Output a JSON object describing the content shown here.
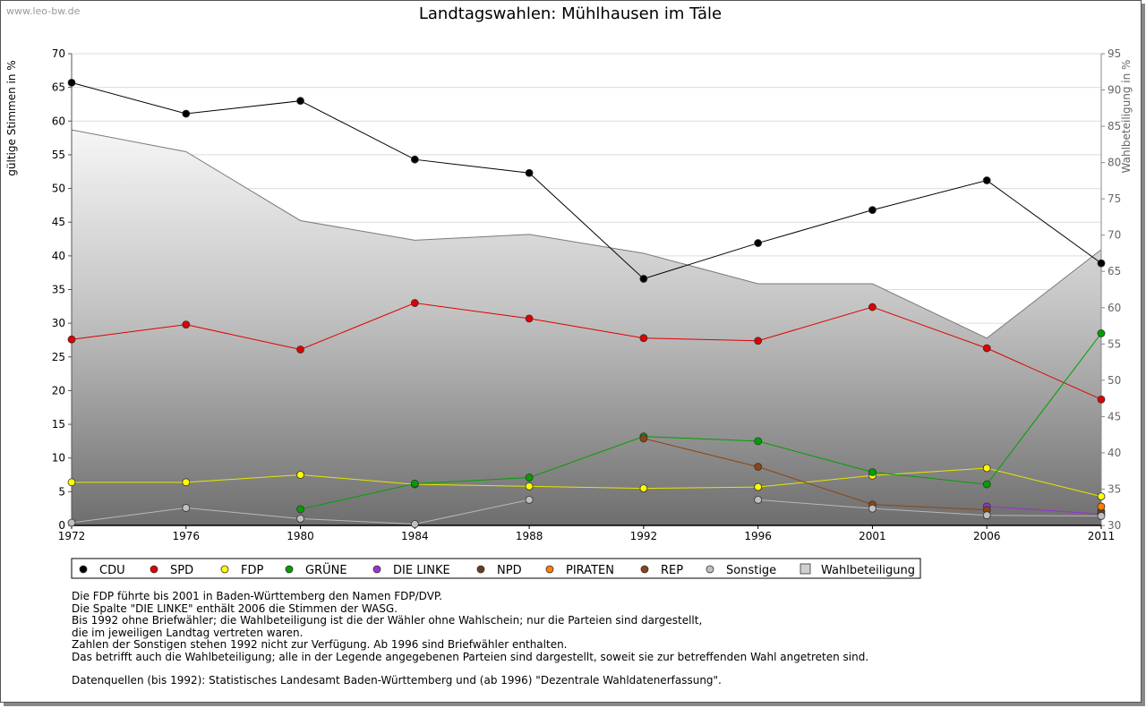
{
  "watermark": "www.leo-bw.de",
  "chart_data": {
    "type": "line",
    "title": "Landtagswahlen: Mühlhausen im Täle",
    "ylabel": "gültige Stimmen in %",
    "y2label": "Wahlbeteiligung in %",
    "x": [
      "1972",
      "1976",
      "1980",
      "1984",
      "1988",
      "1992",
      "1996",
      "2001",
      "2006",
      "2011"
    ],
    "ylim": [
      0,
      70
    ],
    "y_ticks": [
      0,
      5,
      10,
      15,
      20,
      25,
      30,
      35,
      40,
      45,
      50,
      55,
      60,
      65,
      70
    ],
    "y2lim": [
      30,
      95
    ],
    "y2_ticks": [
      30,
      35,
      40,
      45,
      50,
      55,
      60,
      65,
      70,
      75,
      80,
      85,
      90,
      95
    ],
    "grid": true,
    "series": [
      {
        "name": "CDU",
        "color": "#000000",
        "values": [
          65.7,
          61.1,
          63.0,
          54.3,
          52.3,
          36.6,
          41.9,
          46.8,
          51.2,
          38.9
        ]
      },
      {
        "name": "SPD",
        "color": "#e00000",
        "values": [
          27.6,
          29.8,
          26.1,
          33.0,
          30.7,
          27.8,
          27.4,
          32.4,
          26.3,
          18.7
        ]
      },
      {
        "name": "FDP",
        "color": "#ffff00",
        "values": [
          6.4,
          6.4,
          7.5,
          6.1,
          5.8,
          5.5,
          5.7,
          7.4,
          8.5,
          4.3
        ]
      },
      {
        "name": "GRÜNE",
        "color": "#00a000",
        "values": [
          null,
          null,
          2.4,
          6.2,
          7.1,
          13.2,
          12.5,
          7.9,
          6.1,
          28.5
        ]
      },
      {
        "name": "DIE LINKE",
        "color": "#9933cc",
        "values": [
          null,
          null,
          null,
          null,
          null,
          null,
          null,
          null,
          2.8,
          1.7
        ]
      },
      {
        "name": "NPD",
        "color": "#6b3a1f",
        "values": [
          null,
          null,
          null,
          null,
          null,
          null,
          null,
          null,
          null,
          2.1
        ]
      },
      {
        "name": "PIRATEN",
        "color": "#ff7f00",
        "values": [
          null,
          null,
          null,
          null,
          null,
          null,
          null,
          null,
          null,
          2.8
        ]
      },
      {
        "name": "REP",
        "color": "#8b4513",
        "values": [
          null,
          null,
          null,
          null,
          null,
          12.9,
          8.7,
          3.1,
          2.3,
          null
        ]
      },
      {
        "name": "Sonstige",
        "color": "#c0c0c0",
        "values": [
          0.4,
          2.6,
          1.0,
          0.2,
          3.8,
          null,
          3.8,
          2.5,
          1.5,
          1.4
        ]
      }
    ],
    "area_series": {
      "name": "Wahlbeteiligung",
      "axis": "right",
      "values": [
        84.5,
        81.5,
        72.0,
        69.3,
        70.1,
        67.5,
        63.3,
        63.3,
        55.8,
        68.0
      ]
    },
    "legend_position": "bottom"
  },
  "notes": [
    "Die FDP führte bis 2001 in Baden-Württemberg den Namen FDP/DVP.",
    "Die Spalte \"DIE LINKE\" enthält 2006 die Stimmen der WASG.",
    "Bis 1992 ohne Briefwähler; die Wahlbeteiligung ist die der Wähler ohne Wahlschein; nur die Parteien sind dargestellt,",
    "die im jeweiligen Landtag vertreten waren.",
    "Zahlen der Sonstigen stehen 1992 nicht zur Verfügung. Ab 1996 sind Briefwähler enthalten.",
    "Das betrifft auch die Wahlbeteiligung; alle in der Legende angegebenen Parteien sind dargestellt, soweit sie zur betreffenden Wahl angetreten sind.",
    "",
    "Datenquellen (bis 1992): Statistisches Landesamt Baden-Württemberg und (ab 1996) \"Dezentrale Wahldatenerfassung\"."
  ]
}
